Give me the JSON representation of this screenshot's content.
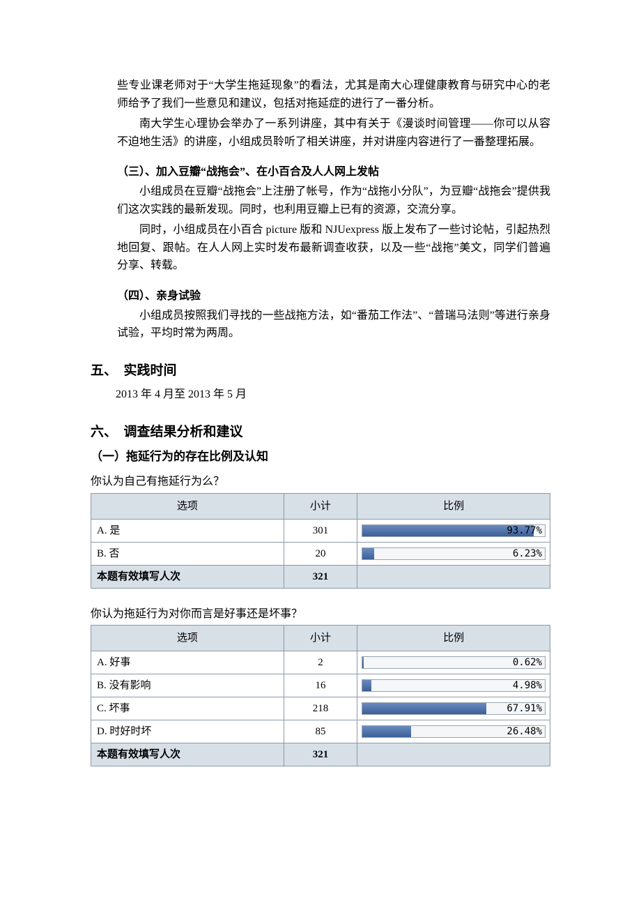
{
  "paragraphs": {
    "p1": "些专业课老师对于“大学生拖延现象”的看法，尤其是南大心理健康教育与研究中心的老师给予了我们一些意见和建议，包括对拖延症的进行了一番分析。",
    "p2": "南大学生心理协会举办了一系列讲座，其中有关于《漫谈时间管理——你可以从容不迫地生活》的讲座，小组成员聆听了相关讲座，并对讲座内容进行了一番整理拓展。",
    "h3": "（三）、加入豆瓣“战拖会”、在小百合及人人网上发帖",
    "p3a": "小组成员在豆瓣“战拖会”上注册了帐号，作为“战拖小分队”，为豆瓣“战拖会”提供我们这次实践的最新发现。同时，也利用豆瓣上已有的资源，交流分享。",
    "p3b": "同时，小组成员在小百合 picture 版和 NJUexpress 版上发布了一些讨论帖，引起热烈地回复、跟帖。在人人网上实时发布最新调查收获，以及一些“战拖”美文，同学们普遍分享、转载。",
    "h4": "（四）、亲身试验",
    "p4": "小组成员按照我们寻找的一些战拖方法，如“番茄工作法”、“普瑞马法则”等进行亲身试验，平均时常为两周。",
    "s5": "五、　实践时间",
    "p5": "2013 年 4 月至 2013 年 5 月",
    "s6": "六、　调查结果分析和建议",
    "s6a": "（一）拖延行为的存在比例及认知"
  },
  "table_headers": {
    "option": "选项",
    "count": "小计",
    "ratio": "比例",
    "total_label": "本题有效填写人次"
  },
  "survey1": {
    "question": "你认为自己有拖延行为么？",
    "rows": [
      {
        "label": "A. 是",
        "count": "301",
        "pct": 93.77,
        "pct_text": "93.77%"
      },
      {
        "label": "B. 否",
        "count": "20",
        "pct": 6.23,
        "pct_text": "6.23%"
      }
    ],
    "total": "321"
  },
  "survey2": {
    "question": "你认为拖延行为对你而言是好事还是坏事？",
    "rows": [
      {
        "label": "A. 好事",
        "count": "2",
        "pct": 0.62,
        "pct_text": "0.62%"
      },
      {
        "label": "B. 没有影响",
        "count": "16",
        "pct": 4.98,
        "pct_text": "4.98%"
      },
      {
        "label": "C. 坏事",
        "count": "218",
        "pct": 67.91,
        "pct_text": "67.91%"
      },
      {
        "label": "D. 时好时坏",
        "count": "85",
        "pct": 26.48,
        "pct_text": "26.48%"
      }
    ],
    "total": "321"
  },
  "colors": {
    "header_bg": "#d7dfe7",
    "border": "#8a9aa9",
    "bar_top": "#6a8bbf",
    "bar_bottom": "#3b5f99",
    "bar_track": "#f4f6f8"
  }
}
